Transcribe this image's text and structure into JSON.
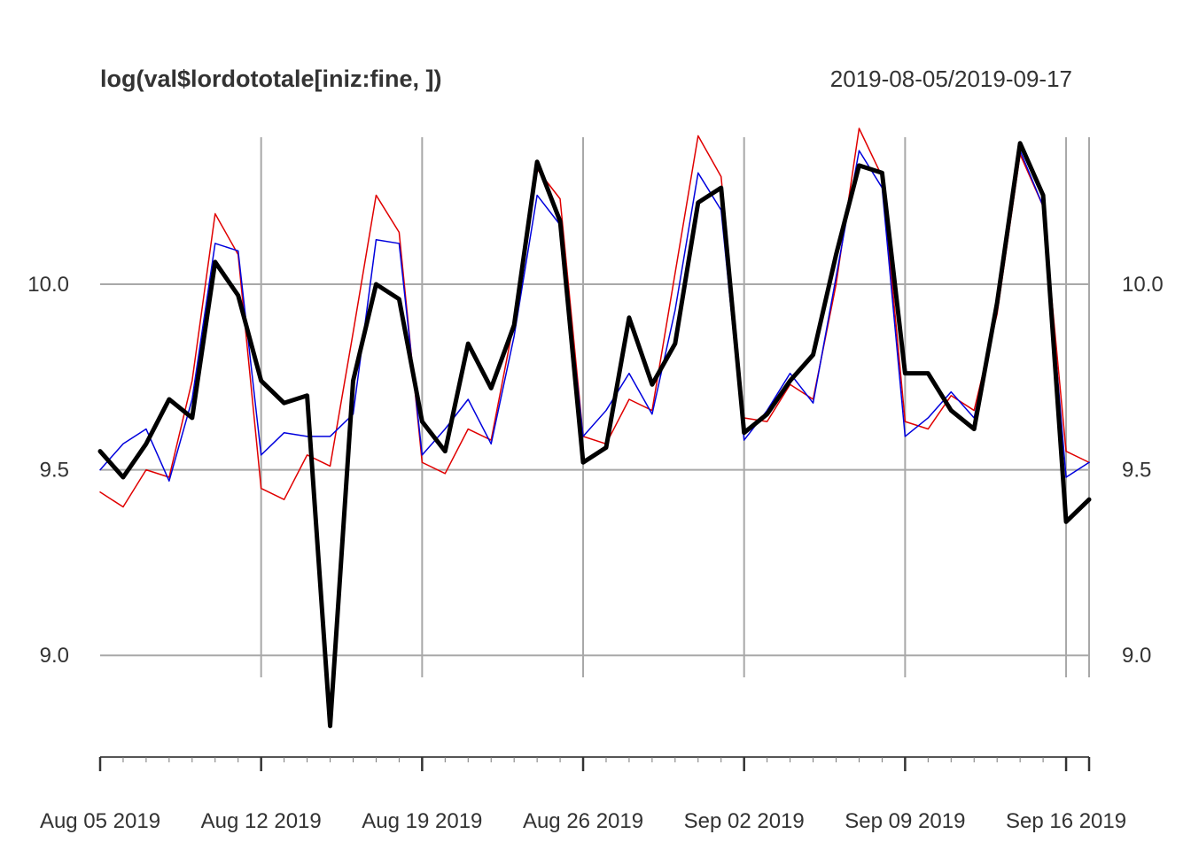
{
  "chart_data": {
    "type": "line",
    "title": "log(val$lordototale[iniz:fine, ])",
    "date_range": "2019-08-05/2019-09-17",
    "x_start": "2019-08-05",
    "x_end": "2019-09-17",
    "ylim": [
      8.75,
      10.42
    ],
    "y_ticks": [
      {
        "value": 9.0,
        "label": "9.0"
      },
      {
        "value": 9.5,
        "label": "9.5"
      },
      {
        "value": 10.0,
        "label": "10.0"
      }
    ],
    "x_ticks": [
      {
        "date": "2019-08-05",
        "label": "Aug 05 2019"
      },
      {
        "date": "2019-08-12",
        "label": "Aug 12 2019"
      },
      {
        "date": "2019-08-19",
        "label": "Aug 19 2019"
      },
      {
        "date": "2019-08-26",
        "label": "Aug 26 2019"
      },
      {
        "date": "2019-09-02",
        "label": "Sep 02 2019"
      },
      {
        "date": "2019-09-09",
        "label": "Sep 09 2019"
      },
      {
        "date": "2019-09-16",
        "label": "Sep 16 2019"
      }
    ],
    "grid": true,
    "series": [
      {
        "color": "#e00000",
        "width": 1.5,
        "values": [
          9.44,
          9.4,
          9.5,
          9.48,
          9.74,
          10.19,
          10.08,
          9.45,
          9.42,
          9.54,
          9.51,
          9.87,
          10.24,
          10.14,
          9.52,
          9.49,
          9.61,
          9.58,
          9.9,
          10.31,
          10.23,
          9.59,
          9.57,
          9.69,
          9.66,
          10.03,
          10.4,
          10.29,
          9.64,
          9.63,
          9.73,
          9.69,
          10.0,
          10.42,
          10.29,
          9.63,
          9.61,
          9.7,
          9.66,
          9.92,
          10.35,
          10.21,
          9.55,
          9.52
        ]
      },
      {
        "color": "#0000dd",
        "width": 1.5,
        "values": [
          9.5,
          9.57,
          9.61,
          9.47,
          9.69,
          10.11,
          10.09,
          9.54,
          9.6,
          9.59,
          9.59,
          9.65,
          10.12,
          10.11,
          9.54,
          9.61,
          9.69,
          9.57,
          9.86,
          10.24,
          10.16,
          9.59,
          9.66,
          9.76,
          9.65,
          9.93,
          10.3,
          10.2,
          9.58,
          9.66,
          9.76,
          9.68,
          10.02,
          10.36,
          10.26,
          9.59,
          9.64,
          9.71,
          9.64,
          9.93,
          10.36,
          10.21,
          9.48,
          9.52
        ]
      },
      {
        "color": "#000000",
        "width": 5,
        "values": [
          9.55,
          9.48,
          9.57,
          9.69,
          9.64,
          10.06,
          9.97,
          9.74,
          9.68,
          9.7,
          8.81,
          9.74,
          10.0,
          9.96,
          9.63,
          9.55,
          9.84,
          9.72,
          9.89,
          10.33,
          10.17,
          9.52,
          9.56,
          9.91,
          9.73,
          9.84,
          10.22,
          10.26,
          9.6,
          9.65,
          9.74,
          9.81,
          10.08,
          10.32,
          10.3,
          9.76,
          9.76,
          9.66,
          9.61,
          9.95,
          10.38,
          10.24,
          9.36,
          9.42
        ]
      }
    ]
  }
}
